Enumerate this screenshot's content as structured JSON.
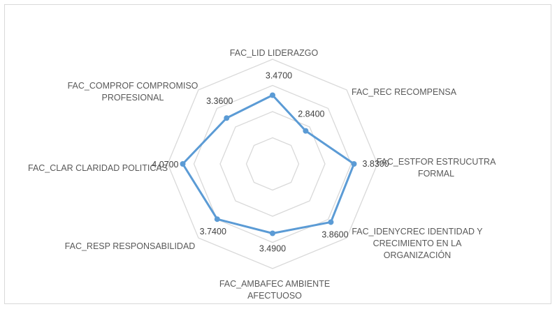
{
  "chart_data": {
    "type": "radar",
    "categories": [
      "FAC_LID LIDERAZGO",
      "FAC_REC RECOMPENSA",
      "FAC_ESTFOR ESTRUCUTRA FORMAL",
      "FAC_IDENYCREC  IDENTIDAD Y CRECIMIENTO EN LA ORGANIZACIÓN",
      "FAC_AMBAFEC  AMBIENTE AFECTUOSO",
      "FAC_RESP  RESPONSABILIDAD",
      "FAC_CLAR CLARIDAD POLITICAS",
      "FAC_COMPROF  COMPROMISO PROFESIONAL"
    ],
    "category_lines": [
      [
        "FAC_LID LIDERAZGO"
      ],
      [
        "FAC_REC RECOMPENSA"
      ],
      [
        "FAC_ESTFOR ESTRUCUTRA",
        "FORMAL"
      ],
      [
        "FAC_IDENYCREC  IDENTIDAD Y",
        "CRECIMIENTO EN LA",
        "ORGANIZACIÓN"
      ],
      [
        "FAC_AMBAFEC  AMBIENTE",
        "AFECTUOSO"
      ],
      [
        "FAC_RESP  RESPONSABILIDAD"
      ],
      [
        "FAC_CLAR CLARIDAD POLITICAS"
      ],
      [
        "FAC_COMPROF  COMPROMISO",
        "PROFESIONAL"
      ]
    ],
    "values": [
      3.47,
      2.84,
      3.83,
      3.86,
      3.49,
      3.74,
      4.07,
      3.36
    ],
    "value_labels": [
      "3.4700",
      "2.8400",
      "3.8300",
      "3.8600",
      "3.4900",
      "3.7400",
      "4.0700",
      "3.3600"
    ],
    "rlim": [
      1.5,
      4.5
    ],
    "grid_rings": 4,
    "grid": true,
    "legend": "none",
    "colors": {
      "series": "#5b9bd5",
      "grid": "#d9d9d9",
      "text": "#595959"
    }
  }
}
